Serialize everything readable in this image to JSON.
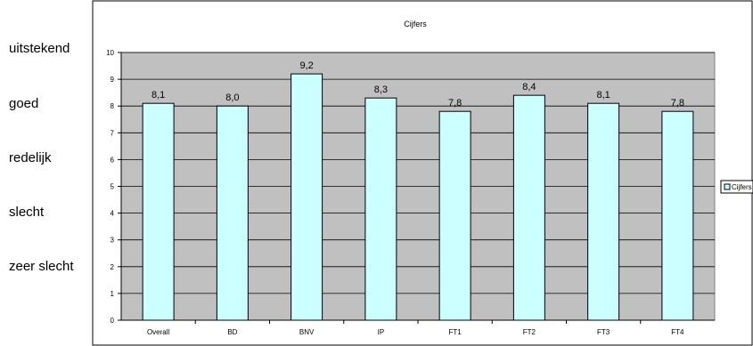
{
  "side_scale": {
    "labels": [
      "uitstekend",
      "goed",
      "redelijk",
      "slecht",
      "zeer slecht"
    ]
  },
  "chart_data": {
    "type": "bar",
    "title": "Cijfers",
    "categories": [
      "Overall",
      "BD",
      "BNV",
      "IP",
      "FT1",
      "FT2",
      "FT3",
      "FT4"
    ],
    "series": [
      {
        "name": "Cijfers",
        "values": [
          8.1,
          8.0,
          9.2,
          8.3,
          7.8,
          8.4,
          8.1,
          7.8
        ],
        "data_labels": [
          "8,1",
          "8,0",
          "9,2",
          "8,3",
          "7,8",
          "8,4",
          "8,1",
          "7,8"
        ]
      }
    ],
    "ylim": [
      0,
      10
    ],
    "yticks": [
      0,
      1,
      2,
      3,
      4,
      5,
      6,
      7,
      8,
      9,
      10
    ],
    "grid": true,
    "legend": "right",
    "colors": {
      "plot_background": "#c0c0c0",
      "bar_fill": "#ccffff",
      "bar_stroke": "#000000",
      "gridline": "#000000"
    }
  }
}
